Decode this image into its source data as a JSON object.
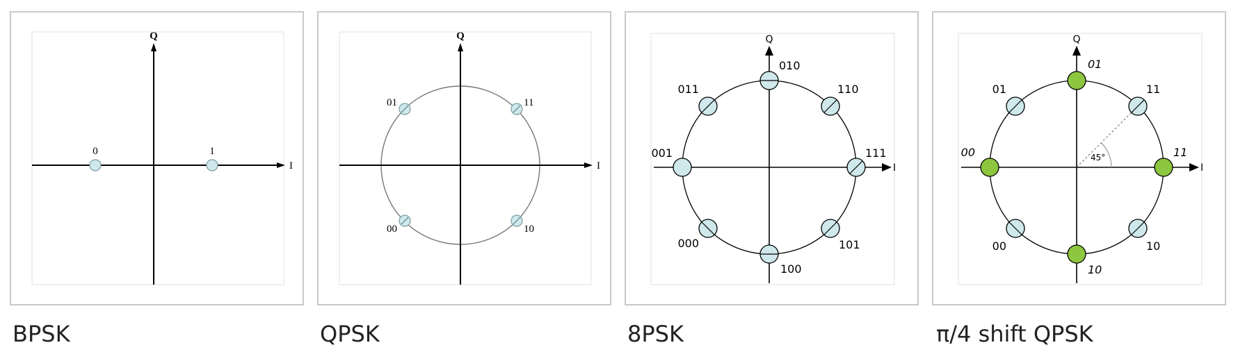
{
  "axis_labels": {
    "in_phase": "I",
    "quadrature": "Q"
  },
  "colors": {
    "point_fill": "#cfe8ec",
    "highlight_fill": "#8dc63f",
    "frame_border": "#c9c9c9"
  },
  "panels": [
    {
      "caption": "BPSK",
      "symbols": [
        {
          "bits": "0",
          "angle_deg": 180
        },
        {
          "bits": "1",
          "angle_deg": 0
        }
      ]
    },
    {
      "caption": "QPSK",
      "symbols": [
        {
          "bits": "11",
          "angle_deg": 45
        },
        {
          "bits": "01",
          "angle_deg": 135
        },
        {
          "bits": "00",
          "angle_deg": 225
        },
        {
          "bits": "10",
          "angle_deg": 315
        }
      ]
    },
    {
      "caption": "8PSK",
      "symbols": [
        {
          "bits": "111",
          "angle_deg": 0
        },
        {
          "bits": "110",
          "angle_deg": 45
        },
        {
          "bits": "010",
          "angle_deg": 90
        },
        {
          "bits": "011",
          "angle_deg": 135
        },
        {
          "bits": "001",
          "angle_deg": 180
        },
        {
          "bits": "000",
          "angle_deg": 225
        },
        {
          "bits": "100",
          "angle_deg": 270
        },
        {
          "bits": "101",
          "angle_deg": 315
        }
      ]
    },
    {
      "caption": "π/4 shift QPSK",
      "angle_label": "45°",
      "symbols": [
        {
          "bits": "11",
          "angle_deg": 45,
          "set": "A"
        },
        {
          "bits": "01",
          "angle_deg": 135,
          "set": "A"
        },
        {
          "bits": "00",
          "angle_deg": 225,
          "set": "A"
        },
        {
          "bits": "10",
          "angle_deg": 315,
          "set": "A"
        },
        {
          "bits": "11",
          "angle_deg": 0,
          "set": "B"
        },
        {
          "bits": "01",
          "angle_deg": 90,
          "set": "B"
        },
        {
          "bits": "00",
          "angle_deg": 180,
          "set": "B"
        },
        {
          "bits": "10",
          "angle_deg": 270,
          "set": "B"
        }
      ]
    }
  ]
}
